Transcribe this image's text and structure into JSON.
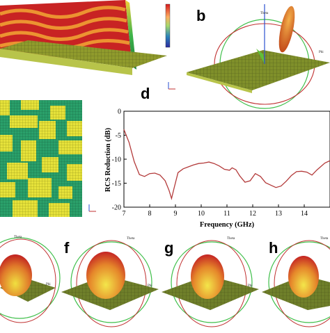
{
  "labels": {
    "b": "b",
    "d": "d",
    "f": "f",
    "g": "g",
    "h": "h"
  },
  "axis_tags": {
    "theta": "Theta",
    "phi": "Phi"
  },
  "colorbar": {
    "ticks": [
      "",
      "",
      "",
      "",
      "",
      "",
      "",
      ""
    ]
  },
  "colors": {
    "curve": "#b33a3a",
    "board": "#8a9a3a",
    "field_red": "#d62020",
    "field_green": "#2fae5a",
    "green_cell": "#2aa06a",
    "yellow_cell": "#e6e23a"
  },
  "chart_data": {
    "type": "line",
    "title": "",
    "xlabel": "Frequency (GHz)",
    "ylabel": "RCS Reduction (dB)",
    "xlim": [
      7,
      15
    ],
    "ylim": [
      -20,
      0
    ],
    "xticks": [
      7,
      8,
      9,
      10,
      11,
      12,
      13,
      14
    ],
    "yticks": [
      0,
      -5,
      -10,
      -15,
      -20
    ],
    "grid": false,
    "series": [
      {
        "x": [
          7.0,
          7.2,
          7.4,
          7.6,
          7.8,
          8.0,
          8.2,
          8.4,
          8.6,
          8.75,
          8.85,
          8.95,
          9.1,
          9.3,
          9.5,
          9.7,
          9.9,
          10.1,
          10.3,
          10.5,
          10.7,
          10.9,
          11.1,
          11.2,
          11.35,
          11.5,
          11.7,
          11.9,
          12.1,
          12.3,
          12.5,
          12.7,
          12.9,
          13.1,
          13.3,
          13.5,
          13.7,
          13.9,
          14.1,
          14.3,
          14.5,
          14.8,
          15.0
        ],
        "y": [
          -3.8,
          -6.5,
          -10.5,
          -13.2,
          -13.6,
          -13.0,
          -12.9,
          -13.3,
          -14.5,
          -16.5,
          -18.2,
          -16.0,
          -12.8,
          -12.0,
          -11.6,
          -11.2,
          -10.9,
          -10.8,
          -10.6,
          -10.9,
          -11.4,
          -12.1,
          -12.3,
          -11.8,
          -12.2,
          -13.5,
          -14.8,
          -14.5,
          -13.0,
          -13.6,
          -14.9,
          -15.4,
          -15.9,
          -15.6,
          -14.6,
          -13.4,
          -12.6,
          -12.5,
          -12.7,
          -13.3,
          -12.2,
          -10.8,
          -10.3
        ]
      }
    ]
  }
}
